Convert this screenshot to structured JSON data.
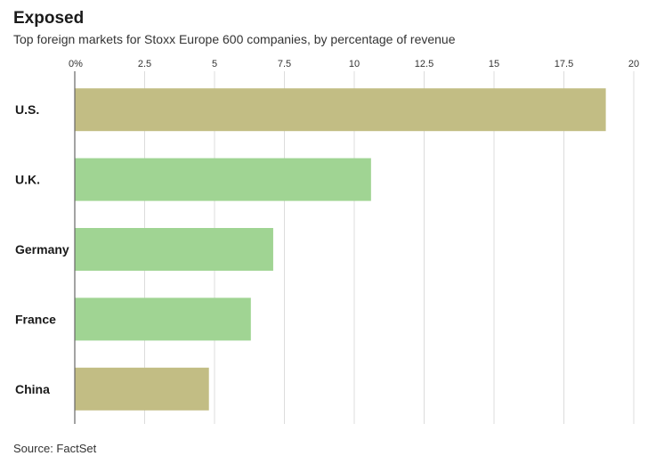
{
  "title": "Exposed",
  "subtitle": "Top foreign markets for Stoxx Europe 600 companies, by percentage of revenue",
  "source": "Source: FactSet",
  "colors": {
    "highlight": "#c2bd84",
    "regular": "#a0d493",
    "gridline": "#dcdcdc",
    "axis": "#666666"
  },
  "chart_data": {
    "type": "bar",
    "orientation": "horizontal",
    "categories": [
      "U.S.",
      "U.K.",
      "Germany",
      "France",
      "China"
    ],
    "values": [
      19.0,
      10.6,
      7.1,
      6.3,
      4.8
    ],
    "highlighted": [
      true,
      false,
      false,
      false,
      true
    ],
    "xlim": [
      0,
      20
    ],
    "xticks": [
      0,
      2.5,
      5,
      7.5,
      10,
      12.5,
      15,
      17.5,
      20
    ],
    "xtick_labels": [
      "0%",
      "2.5",
      "5",
      "7.5",
      "10",
      "12.5",
      "15",
      "17.5",
      "20"
    ],
    "tick_position": "top",
    "grid": true,
    "title": "Exposed",
    "subtitle": "Top foreign markets for Stoxx Europe 600 companies, by percentage of revenue",
    "xlabel": "",
    "ylabel": ""
  }
}
